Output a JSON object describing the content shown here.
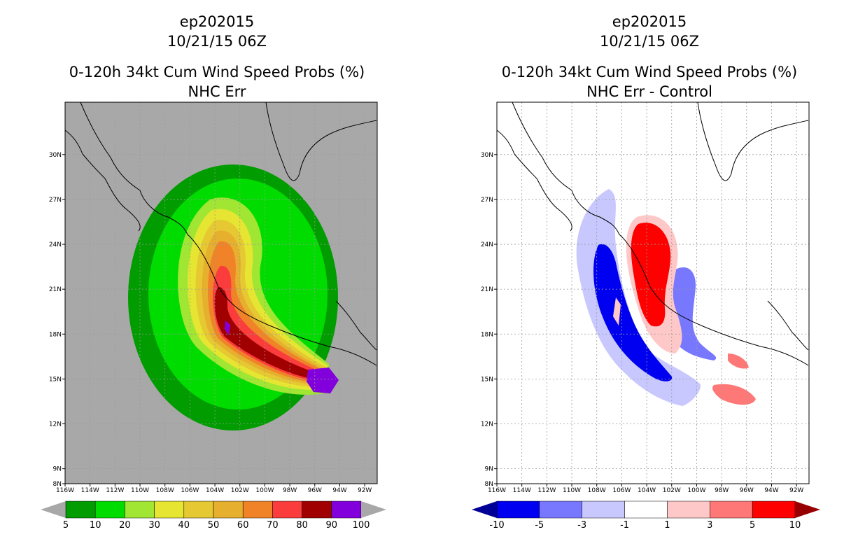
{
  "chart_data": [
    {
      "type": "heatmap",
      "title_lines": [
        "ep202015",
        "10/21/15 06Z"
      ],
      "subtitle_lines": [
        "0-120h 34kt Cum Wind Speed Probs (%)",
        "NHC Err"
      ],
      "xticks": [
        "116W",
        "114W",
        "112W",
        "110W",
        "108W",
        "106W",
        "104W",
        "102W",
        "100W",
        "98W",
        "96W",
        "94W",
        "92W"
      ],
      "yticks": [
        "8N",
        "9N",
        "12N",
        "15N",
        "18N",
        "21N",
        "24N",
        "27N",
        "30N"
      ],
      "lon_range": [
        -116,
        -91
      ],
      "lat_range": [
        8,
        33.5
      ],
      "background_color": "#a8a8a8",
      "colorbar": {
        "labels": [
          "5",
          "10",
          "20",
          "30",
          "40",
          "50",
          "60",
          "70",
          "80",
          "90",
          "100"
        ],
        "colors": [
          "#009c00",
          "#00dc00",
          "#a0e632",
          "#e6e632",
          "#e6c832",
          "#e6af2d",
          "#f08228",
          "#fa3c3c",
          "#a00000",
          "#8200dc"
        ],
        "end_colors": [
          "#a8a8a8",
          "#a8a8a8"
        ]
      },
      "contour_levels": [
        {
          "min": 5,
          "color": "#009c00"
        },
        {
          "min": 10,
          "color": "#00dc00"
        },
        {
          "min": 20,
          "color": "#a0e632"
        },
        {
          "min": 30,
          "color": "#e6e632"
        },
        {
          "min": 40,
          "color": "#e6c832"
        },
        {
          "min": 50,
          "color": "#e6af2d"
        },
        {
          "min": 60,
          "color": "#f08228"
        },
        {
          "min": 70,
          "color": "#fa3c3c"
        },
        {
          "min": 80,
          "color": "#a00000"
        },
        {
          "min": 90,
          "color": "#8200dc"
        }
      ]
    },
    {
      "type": "heatmap",
      "title_lines": [
        "ep202015",
        "10/21/15 06Z"
      ],
      "subtitle_lines": [
        "0-120h 34kt Cum Wind Speed Probs (%)",
        "NHC Err - Control"
      ],
      "xticks": [
        "116W",
        "114W",
        "112W",
        "110W",
        "108W",
        "106W",
        "104W",
        "102W",
        "100W",
        "98W",
        "96W",
        "94W",
        "92W"
      ],
      "yticks": [
        "8N",
        "9N",
        "12N",
        "15N",
        "18N",
        "21N",
        "24N",
        "27N",
        "30N"
      ],
      "lon_range": [
        -116,
        -91
      ],
      "lat_range": [
        8,
        33.5
      ],
      "background_color": "#ffffff",
      "colorbar": {
        "labels": [
          "-10",
          "-5",
          "-3",
          "-1",
          "1",
          "3",
          "5",
          "10"
        ],
        "colors": [
          "#0000f0",
          "#7878ff",
          "#c8c8ff",
          "#ffffff",
          "#ffc8c8",
          "#ff7878",
          "#ff0000"
        ],
        "end_colors": [
          "#000096",
          "#960000"
        ]
      },
      "contour_levels": [
        {
          "range": "-5..-3",
          "color": "#7878ff"
        },
        {
          "range": "-3..-1",
          "color": "#c8c8ff"
        },
        {
          "range": "-10..-5",
          "color": "#0000f0"
        },
        {
          "range": "1..3",
          "color": "#ffc8c8"
        },
        {
          "range": "3..5",
          "color": "#ff7878"
        },
        {
          "range": "5..10",
          "color": "#ff0000"
        }
      ]
    }
  ]
}
